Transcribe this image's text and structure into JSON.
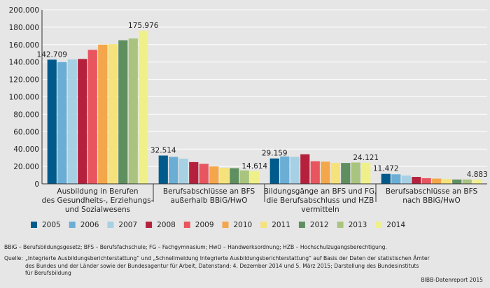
{
  "chart_data": {
    "type": "bar",
    "ylim": [
      0,
      200000
    ],
    "yticks": [
      "0",
      "20.000",
      "40.000",
      "60.000",
      "80.000",
      "100.000",
      "120.000",
      "140.000",
      "160.000",
      "180.000",
      "200.000"
    ],
    "categories": [
      [
        "Ausbildung in Berufen",
        "des Gesundheits-, Erziehungs-",
        "und Sozialwesens"
      ],
      [
        "Berufsabschlüsse an BFS",
        "außerhalb BBiG/HwO"
      ],
      [
        "Bildungsgänge an BFS und FG,",
        "die Berufsabschluss und HZB",
        "vermitteln"
      ],
      [
        "Berufsabschlüsse an BFS",
        "nach BBiG/HwO"
      ]
    ],
    "series": [
      {
        "name": "2005",
        "color": "#005a8c",
        "values": [
          142709,
          32514,
          29159,
          11472
        ]
      },
      {
        "name": "2006",
        "color": "#6aaed6",
        "values": [
          140000,
          31000,
          31500,
          11000
        ]
      },
      {
        "name": "2007",
        "color": "#a6d0e4",
        "values": [
          143000,
          29000,
          31000,
          9500
        ]
      },
      {
        "name": "2008",
        "color": "#b5213c",
        "values": [
          143500,
          25000,
          34000,
          8000
        ]
      },
      {
        "name": "2009",
        "color": "#e8555e",
        "values": [
          154000,
          23000,
          26000,
          6500
        ]
      },
      {
        "name": "2010",
        "color": "#f4a64a",
        "values": [
          160000,
          20000,
          25500,
          6000
        ]
      },
      {
        "name": "2011",
        "color": "#f5e27a",
        "values": [
          160500,
          18500,
          24000,
          5500
        ]
      },
      {
        "name": "2012",
        "color": "#5f8f5f",
        "values": [
          165000,
          18000,
          24000,
          5000
        ]
      },
      {
        "name": "2013",
        "color": "#a9c47f",
        "values": [
          167000,
          15500,
          24500,
          5000
        ]
      },
      {
        "name": "2014",
        "color": "#f0f08a",
        "values": [
          175976,
          14614,
          24121,
          4883
        ]
      }
    ],
    "data_labels": [
      {
        "category": 0,
        "series": 0,
        "text": "142.709"
      },
      {
        "category": 0,
        "series": 9,
        "text": "175.976"
      },
      {
        "category": 1,
        "series": 0,
        "text": "32.514"
      },
      {
        "category": 1,
        "series": 9,
        "text": "14.614"
      },
      {
        "category": 2,
        "series": 0,
        "text": "29.159"
      },
      {
        "category": 2,
        "series": 9,
        "text": "24.121"
      },
      {
        "category": 3,
        "series": 0,
        "text": "11.472"
      },
      {
        "category": 3,
        "series": 9,
        "text": "4.883"
      }
    ]
  },
  "notes": {
    "abbreviations": "BBiG – Berufsbildungsgesetz; BFS – Berufsfachschule; FG – Fachgymnasium; HwO – Handwerksordnung; HZB – Hochschulzugangsberechtigung.",
    "source_label": "Quelle:",
    "source_lines": [
      "„Integrierte Ausbildungsberichterstattung“ und „Schnellmeldung Integrierte Ausbildungsberichterstattung“ auf Basis der Daten der statistischen Ämter",
      "des Bundes und der Länder sowie der Bundesagentur für Arbeit, Datenstand: 4. Dezember 2014 und 5. März 2015; Darstellung des Bundesinstituts",
      "für Berufsbildung"
    ],
    "credit": "BIBB-Datenreport 2015"
  }
}
